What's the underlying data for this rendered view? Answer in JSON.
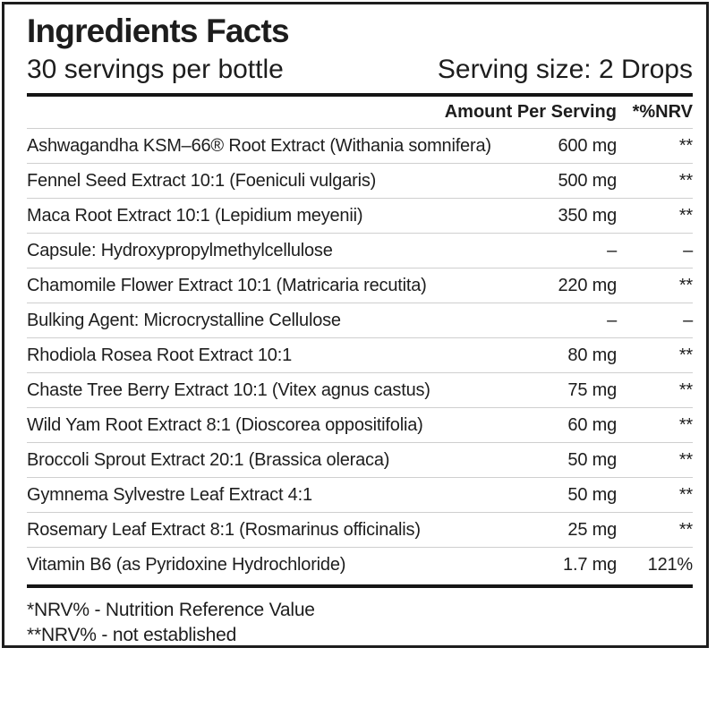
{
  "label": {
    "title": "Ingredients Facts",
    "servings_line": "30 servings per bottle",
    "serving_size_line": "Serving size: 2 Drops",
    "header": {
      "amount": "Amount Per Serving",
      "nrv": "*%NRV"
    },
    "rows": [
      {
        "name": "Ashwagandha KSM–66® Root Extract (Withania somnifera)",
        "amount": "600 mg",
        "nrv": "**"
      },
      {
        "name": "Fennel Seed Extract 10:1 (Foeniculi vulgaris)",
        "amount": "500 mg",
        "nrv": "**"
      },
      {
        "name": "Maca Root Extract 10:1 (Lepidium meyenii)",
        "amount": "350 mg",
        "nrv": "**"
      },
      {
        "name": "Capsule: Hydroxypropylmethylcellulose",
        "amount": "–",
        "nrv": "–"
      },
      {
        "name": "Chamomile Flower Extract 10:1 (Matricaria recutita)",
        "amount": "220 mg",
        "nrv": "**"
      },
      {
        "name": "Bulking Agent: Microcrystalline Cellulose",
        "amount": "–",
        "nrv": "–"
      },
      {
        "name": "Rhodiola Rosea Root Extract 10:1",
        "amount": "80 mg",
        "nrv": "**"
      },
      {
        "name": "Chaste Tree Berry Extract 10:1 (Vitex agnus castus)",
        "amount": "75 mg",
        "nrv": "**"
      },
      {
        "name": "Wild Yam Root Extract 8:1 (Dioscorea oppositifolia)",
        "amount": "60 mg",
        "nrv": "**"
      },
      {
        "name": "Broccoli Sprout Extract 20:1 (Brassica oleraca)",
        "amount": "50 mg",
        "nrv": "**"
      },
      {
        "name": "Gymnema Sylvestre Leaf Extract 4:1",
        "amount": "50 mg",
        "nrv": "**"
      },
      {
        "name": "Rosemary Leaf Extract 8:1 (Rosmarinus officinalis)",
        "amount": "25 mg",
        "nrv": "**"
      },
      {
        "name": "Vitamin B6 (as Pyridoxine Hydrochloride)",
        "amount": "1.7 mg",
        "nrv": "121%"
      }
    ],
    "footnotes": [
      "*NRV% - Nutrition Reference Value",
      "**NRV% - not established"
    ],
    "colors": {
      "text": "#1d1d1d",
      "thin_line": "#cfcfcf",
      "thick_bar": "#151515",
      "border": "#1d1d1d",
      "background": "#ffffff"
    }
  }
}
